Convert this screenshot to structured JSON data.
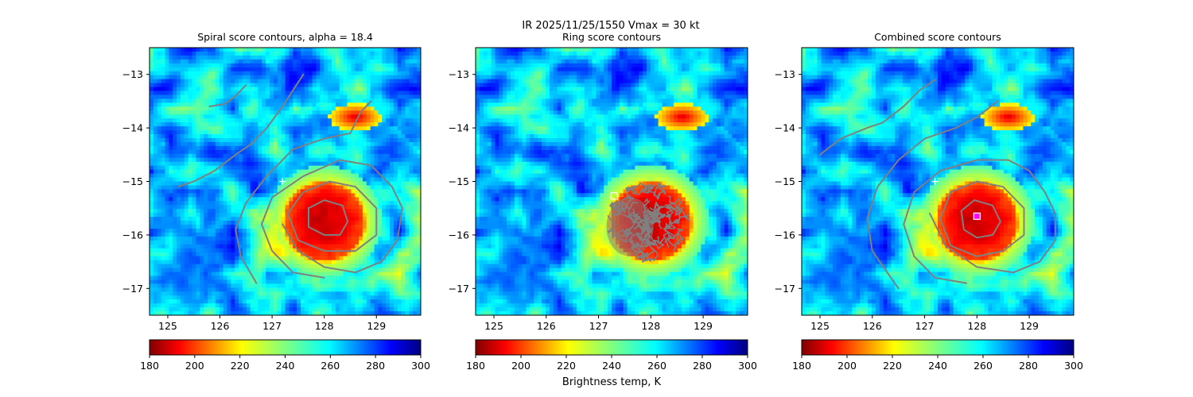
{
  "figure": {
    "suptitle": "IR  2025/11/25/1550    Vmax = 30 kt",
    "colorbar_label": "Brightness temp, K"
  },
  "chart_data": [
    {
      "type": "heatmap",
      "title": "Spiral score contours, alpha = 18.4",
      "xlim": [
        124.65,
        129.85
      ],
      "ylim": [
        -17.5,
        -12.5
      ],
      "x_ticks": [
        125,
        126,
        127,
        128,
        129
      ],
      "y_ticks": [
        -13,
        -14,
        -15,
        -16,
        -17
      ],
      "x_tick_labels": [
        "125",
        "126",
        "127",
        "128",
        "129"
      ],
      "y_tick_labels": [
        "−13",
        "−14",
        "−15",
        "−16",
        "−17"
      ],
      "colorbar": {
        "vmin": 180,
        "vmax": 300,
        "ticks": [
          180,
          200,
          220,
          240,
          260,
          280,
          300
        ],
        "tick_labels": [
          "180",
          "200",
          "220",
          "240",
          "260",
          "280",
          "300"
        ],
        "cmap": "jet_r"
      },
      "storm_center": {
        "lon": 128.0,
        "lat": -15.75,
        "radius_deg": 0.75
      },
      "secondary_cloud": {
        "lon": 128.6,
        "lat": -13.8
      },
      "first_guess_marker": {
        "lon": 127.2,
        "lat": -15.0,
        "symbol": "+"
      },
      "best_marker": null,
      "contours": [
        [
          [
            125.2,
            -15.1
          ],
          [
            125.5,
            -15.0
          ],
          [
            125.9,
            -14.8
          ],
          [
            126.3,
            -14.5
          ],
          [
            126.6,
            -14.3
          ],
          [
            126.9,
            -14.0
          ],
          [
            127.2,
            -13.6
          ],
          [
            127.4,
            -13.3
          ],
          [
            127.6,
            -13.0
          ]
        ],
        [
          [
            125.8,
            -13.6
          ],
          [
            126.1,
            -13.55
          ],
          [
            126.3,
            -13.4
          ],
          [
            126.5,
            -13.2
          ]
        ],
        [
          [
            126.7,
            -16.9
          ],
          [
            126.4,
            -16.4
          ],
          [
            126.3,
            -15.9
          ],
          [
            126.5,
            -15.4
          ],
          [
            126.9,
            -14.9
          ],
          [
            127.4,
            -14.4
          ],
          [
            128.0,
            -14.2
          ],
          [
            128.5,
            -14.1
          ],
          [
            128.7,
            -13.7
          ],
          [
            128.9,
            -13.5
          ]
        ],
        [
          [
            128.0,
            -16.8
          ],
          [
            127.4,
            -16.7
          ],
          [
            127.0,
            -16.3
          ],
          [
            126.8,
            -15.8
          ],
          [
            127.0,
            -15.3
          ],
          [
            127.6,
            -14.9
          ],
          [
            128.3,
            -14.6
          ],
          [
            128.9,
            -14.7
          ],
          [
            129.3,
            -15.1
          ],
          [
            129.5,
            -15.5
          ],
          [
            129.4,
            -16.1
          ],
          [
            129.1,
            -16.5
          ],
          [
            128.6,
            -16.7
          ],
          [
            128.0,
            -16.6
          ],
          [
            127.5,
            -16.3
          ],
          [
            127.2,
            -15.8
          ]
        ],
        [
          [
            128.0,
            -16.3
          ],
          [
            127.5,
            -16.1
          ],
          [
            127.3,
            -15.6
          ],
          [
            127.6,
            -15.2
          ],
          [
            128.1,
            -15.0
          ],
          [
            128.6,
            -15.1
          ],
          [
            129.0,
            -15.5
          ],
          [
            129.0,
            -16.0
          ],
          [
            128.6,
            -16.3
          ],
          [
            128.0,
            -16.3
          ]
        ],
        [
          [
            128.0,
            -16.0
          ],
          [
            127.7,
            -15.85
          ],
          [
            127.7,
            -15.5
          ],
          [
            128.0,
            -15.35
          ],
          [
            128.35,
            -15.45
          ],
          [
            128.45,
            -15.75
          ],
          [
            128.3,
            -16.0
          ],
          [
            128.0,
            -16.0
          ]
        ]
      ]
    },
    {
      "type": "heatmap",
      "title": "Ring score contours",
      "xlim": [
        124.65,
        129.85
      ],
      "ylim": [
        -17.5,
        -12.5
      ],
      "x_ticks": [
        125,
        126,
        127,
        128,
        129
      ],
      "y_ticks": [
        -13,
        -14,
        -15,
        -16,
        -17
      ],
      "x_tick_labels": [
        "125",
        "126",
        "127",
        "128",
        "129"
      ],
      "y_tick_labels": [
        "−13",
        "−14",
        "−15",
        "−16",
        "−17"
      ],
      "colorbar": {
        "vmin": 180,
        "vmax": 300,
        "ticks": [
          180,
          200,
          220,
          240,
          260,
          280,
          300
        ],
        "tick_labels": [
          "180",
          "200",
          "220",
          "240",
          "260",
          "280",
          "300"
        ],
        "cmap": "jet_r"
      },
      "storm_center": {
        "lon": 128.0,
        "lat": -15.75,
        "radius_deg": 0.75
      },
      "secondary_cloud": {
        "lon": 128.6,
        "lat": -13.8
      },
      "first_guess_marker": null,
      "best_marker": {
        "lon": 127.3,
        "lat": -15.27,
        "symbol": "square",
        "color": "#ffffff"
      },
      "ring_noise_region": {
        "lon": 127.95,
        "lat": -15.75,
        "r_lon": 0.8,
        "r_lat": 0.75
      },
      "contours": []
    },
    {
      "type": "heatmap",
      "title": "Combined score contours",
      "xlim": [
        124.65,
        129.85
      ],
      "ylim": [
        -17.5,
        -12.5
      ],
      "x_ticks": [
        125,
        126,
        127,
        128,
        129
      ],
      "y_ticks": [
        -13,
        -14,
        -15,
        -16,
        -17
      ],
      "x_tick_labels": [
        "125",
        "126",
        "127",
        "128",
        "129"
      ],
      "y_tick_labels": [
        "−13",
        "−14",
        "−15",
        "−16",
        "−17"
      ],
      "colorbar": {
        "vmin": 180,
        "vmax": 300,
        "ticks": [
          180,
          200,
          220,
          240,
          260,
          280,
          300
        ],
        "tick_labels": [
          "180",
          "200",
          "220",
          "240",
          "260",
          "280",
          "300"
        ],
        "cmap": "jet_r"
      },
      "storm_center": {
        "lon": 128.0,
        "lat": -15.75,
        "radius_deg": 0.75
      },
      "secondary_cloud": {
        "lon": 128.6,
        "lat": -13.8
      },
      "first_guess_marker": {
        "lon": 127.2,
        "lat": -15.0,
        "symbol": "+"
      },
      "best_marker": {
        "lon": 128.0,
        "lat": -15.65,
        "symbol": "square",
        "color": "#ff00ff"
      },
      "contours": [
        [
          [
            125.0,
            -14.5
          ],
          [
            125.4,
            -14.2
          ],
          [
            125.9,
            -14.0
          ],
          [
            126.2,
            -13.9
          ],
          [
            126.6,
            -13.6
          ],
          [
            126.9,
            -13.3
          ],
          [
            127.2,
            -13.1
          ]
        ],
        [
          [
            126.5,
            -17.0
          ],
          [
            126.0,
            -16.3
          ],
          [
            125.9,
            -15.7
          ],
          [
            126.1,
            -15.1
          ],
          [
            126.5,
            -14.6
          ],
          [
            127.0,
            -14.2
          ],
          [
            127.6,
            -14.0
          ],
          [
            128.0,
            -13.8
          ],
          [
            128.4,
            -13.5
          ]
        ],
        [
          [
            127.8,
            -16.9
          ],
          [
            127.2,
            -16.8
          ],
          [
            126.8,
            -16.4
          ],
          [
            126.6,
            -15.8
          ],
          [
            126.8,
            -15.2
          ],
          [
            127.3,
            -14.8
          ],
          [
            128.0,
            -14.6
          ],
          [
            128.6,
            -14.6
          ],
          [
            129.0,
            -14.8
          ],
          [
            129.3,
            -15.2
          ],
          [
            129.5,
            -15.6
          ],
          [
            129.5,
            -16.1
          ],
          [
            129.2,
            -16.5
          ],
          [
            128.7,
            -16.7
          ],
          [
            128.0,
            -16.6
          ],
          [
            127.4,
            -16.2
          ],
          [
            127.1,
            -15.6
          ]
        ],
        [
          [
            128.0,
            -16.4
          ],
          [
            127.5,
            -16.2
          ],
          [
            127.3,
            -15.7
          ],
          [
            127.5,
            -15.2
          ],
          [
            128.0,
            -15.0
          ],
          [
            128.5,
            -15.1
          ],
          [
            128.9,
            -15.5
          ],
          [
            128.9,
            -16.0
          ],
          [
            128.5,
            -16.3
          ],
          [
            128.0,
            -16.4
          ]
        ],
        [
          [
            128.0,
            -16.05
          ],
          [
            127.75,
            -15.9
          ],
          [
            127.7,
            -15.55
          ],
          [
            127.95,
            -15.35
          ],
          [
            128.3,
            -15.45
          ],
          [
            128.45,
            -15.75
          ],
          [
            128.3,
            -16.0
          ],
          [
            128.0,
            -16.05
          ]
        ]
      ]
    }
  ]
}
